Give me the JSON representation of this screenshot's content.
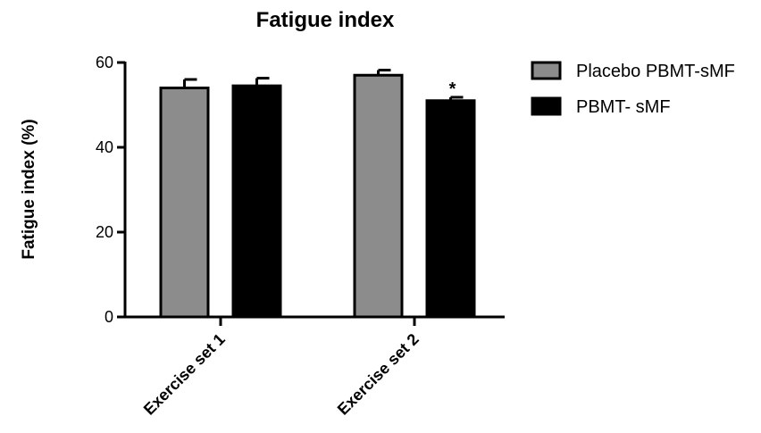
{
  "chart_data": {
    "type": "bar",
    "title": "Fatigue index",
    "xlabel": "",
    "ylabel": "Fatigue index (%)",
    "ylim": [
      0,
      60
    ],
    "yticks": [
      0,
      20,
      40,
      60
    ],
    "categories": [
      "Exercise set 1",
      "Exercise set 2"
    ],
    "series": [
      {
        "name": "Placebo PBMT-sMF",
        "values": [
          54,
          57
        ],
        "errors": [
          2,
          1.2
        ],
        "color": "#8c8c8c"
      },
      {
        "name": "PBMT- sMF",
        "values": [
          54.5,
          51
        ],
        "errors": [
          1.8,
          0.8
        ],
        "color": "#000000"
      }
    ],
    "annotations": [
      {
        "category_index": 1,
        "series_index": 1,
        "text": "*"
      }
    ],
    "legend_position": "top-right",
    "grid": false
  }
}
